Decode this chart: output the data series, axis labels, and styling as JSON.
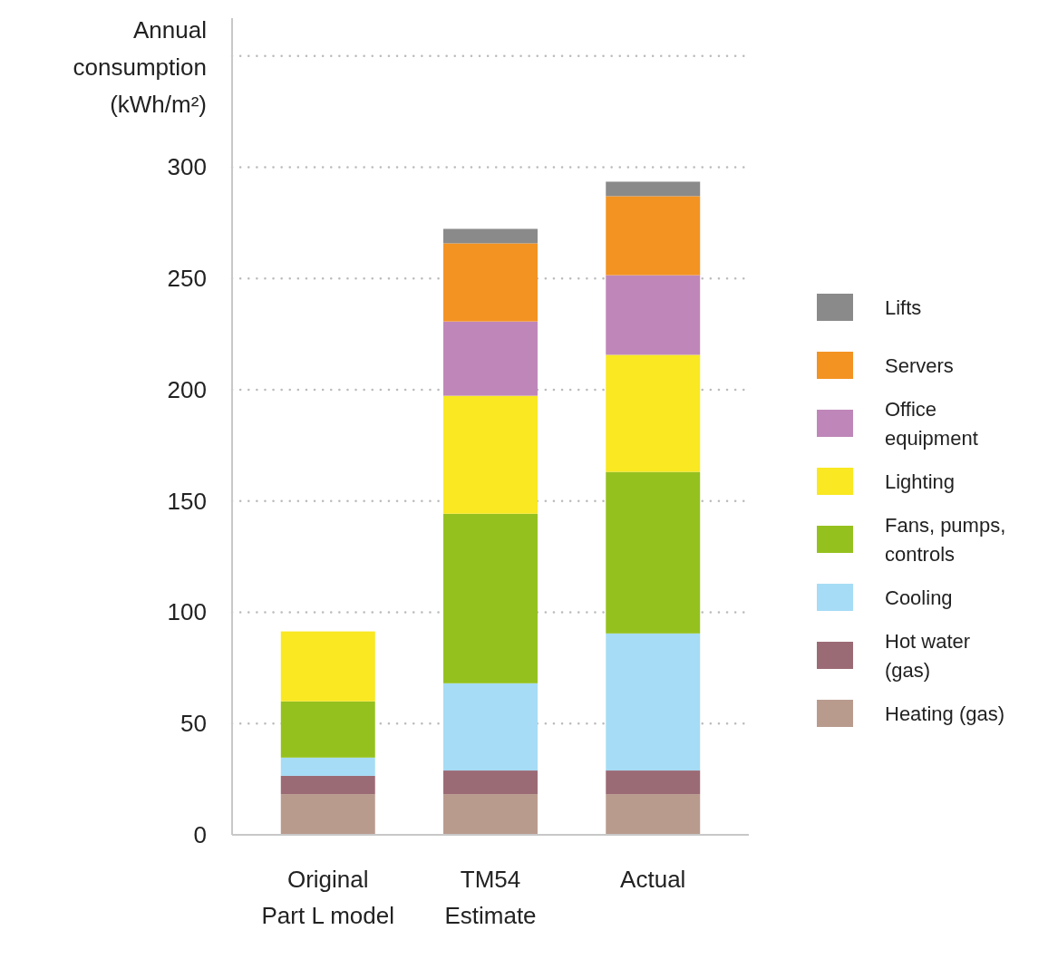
{
  "chart_data": {
    "type": "bar",
    "stacked": true,
    "ylabel": "Annual consumption (kWh/m²)",
    "categories": [
      "Original Part L model",
      "TM54 Estimate",
      "Actual"
    ],
    "series": [
      {
        "name": "Heating (gas)",
        "color": "#b99b8e",
        "values": [
          18.3,
          18.3,
          18.3
        ]
      },
      {
        "name": "Hot water (gas)",
        "color": "#9b6b75",
        "values": [
          8.2,
          10.6,
          10.6
        ]
      },
      {
        "name": "Cooling",
        "color": "#a6dcf5",
        "values": [
          8.2,
          39.2,
          61.6
        ]
      },
      {
        "name": "Fans, pumps, controls",
        "color": "#95c11f",
        "values": [
          25.3,
          76.2,
          72.6
        ]
      },
      {
        "name": "Lighting",
        "color": "#f9e822",
        "values": [
          31.4,
          53,
          52.6
        ]
      },
      {
        "name": "Office equipment",
        "color": "#bf87b9",
        "values": [
          null,
          33.4,
          35.8
        ]
      },
      {
        "name": "Servers",
        "color": "#f39322",
        "values": [
          null,
          35.1,
          35.5
        ]
      },
      {
        "name": "Lifts",
        "color": "#8a8a8a",
        "values": [
          null,
          6.5,
          6.5
        ]
      }
    ],
    "ylim": [
      0,
      367
    ],
    "yticks": [
      0,
      50,
      100,
      150,
      200,
      250,
      300,
      {
        "value": 350,
        "label": null
      }
    ],
    "grid": "y",
    "legend": "right"
  }
}
